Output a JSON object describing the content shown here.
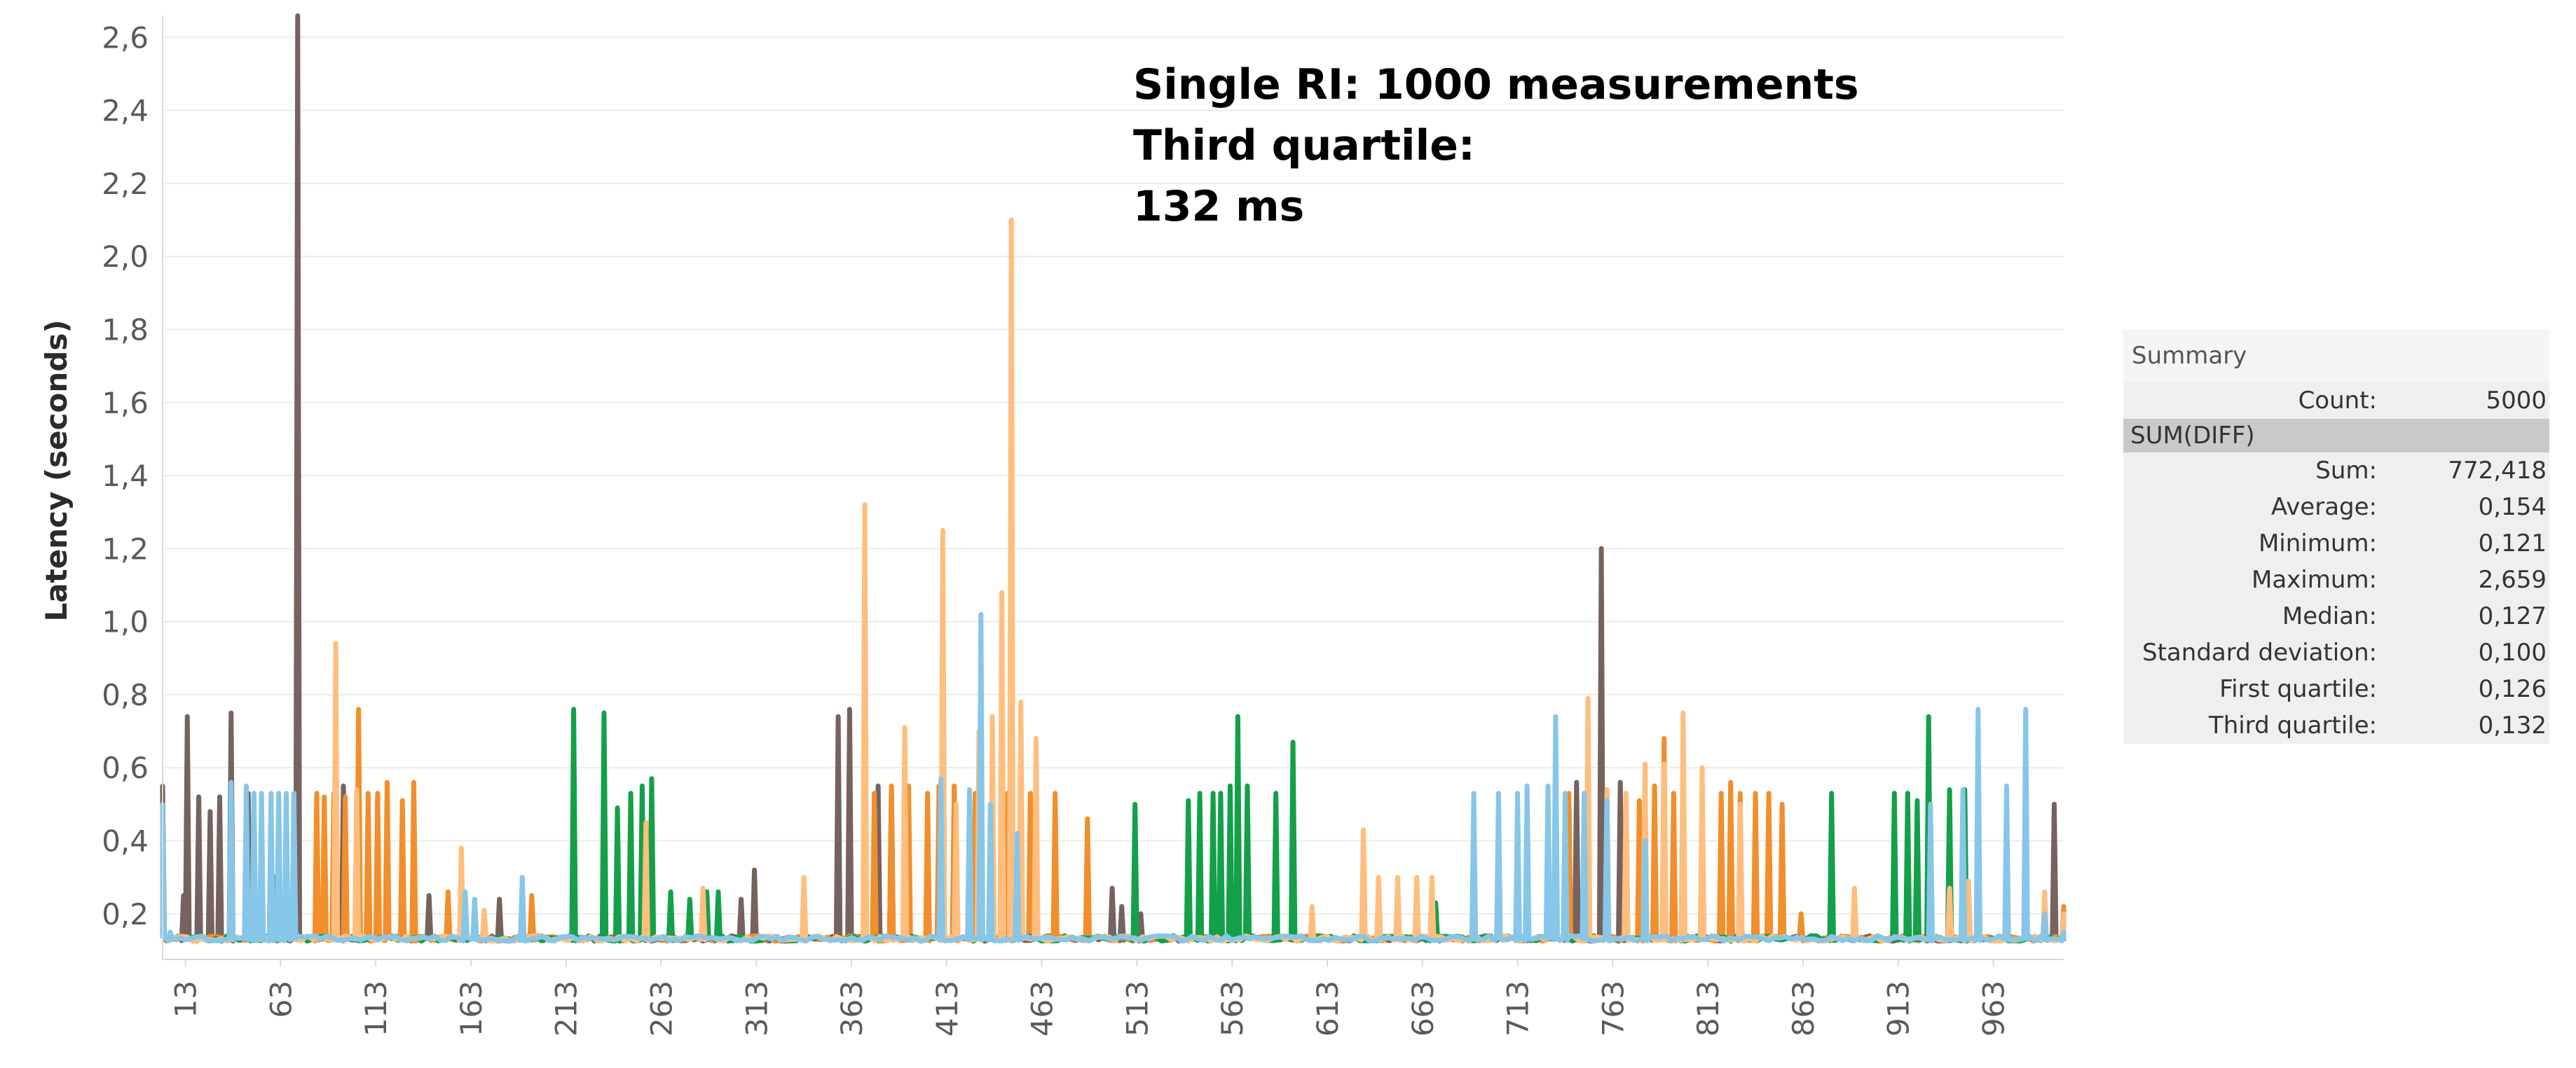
{
  "chart_data": {
    "type": "line",
    "title": "",
    "xlabel": "",
    "ylabel": "Latency (seconds)",
    "xlim": [
      1,
      1000
    ],
    "ylim": [
      0.075,
      2.66
    ],
    "yticks": [
      "0,2",
      "0,4",
      "0,6",
      "0,8",
      "1,0",
      "1,2",
      "1,4",
      "1,6",
      "1,8",
      "2,0",
      "2,2",
      "2,4",
      "2,6"
    ],
    "ytick_values": [
      0.2,
      0.4,
      0.6,
      0.8,
      1.0,
      1.2,
      1.4,
      1.6,
      1.8,
      2.0,
      2.2,
      2.4,
      2.6
    ],
    "xticks": [
      "13",
      "63",
      "113",
      "163",
      "213",
      "263",
      "313",
      "363",
      "413",
      "463",
      "513",
      "563",
      "613",
      "663",
      "713",
      "763",
      "813",
      "863",
      "913",
      "963"
    ],
    "xtick_values": [
      13,
      63,
      113,
      163,
      213,
      263,
      313,
      363,
      413,
      463,
      513,
      563,
      613,
      663,
      713,
      763,
      813,
      863,
      913,
      963
    ],
    "baseline": 0.125,
    "series": [
      {
        "name": "series-brown",
        "color": "#76625e",
        "points": [
          [
            1,
            0.55
          ],
          [
            12,
            0.25
          ],
          [
            14,
            0.74
          ],
          [
            20,
            0.52
          ],
          [
            26,
            0.48
          ],
          [
            31,
            0.52
          ],
          [
            37,
            0.75
          ],
          [
            46,
            0.53
          ],
          [
            60,
            0.3
          ],
          [
            72,
            2.659
          ],
          [
            96,
            0.55
          ],
          [
            141,
            0.25
          ],
          [
            160,
            0.25
          ],
          [
            178,
            0.24
          ],
          [
            305,
            0.24
          ],
          [
            312,
            0.32
          ],
          [
            356,
            0.74
          ],
          [
            362,
            0.76
          ],
          [
            377,
            0.55
          ],
          [
            384,
            0.55
          ],
          [
            392,
            0.53
          ],
          [
            500,
            0.27
          ],
          [
            505,
            0.22
          ],
          [
            515,
            0.2
          ],
          [
            744,
            0.56
          ],
          [
            757,
            1.2
          ],
          [
            767,
            0.56
          ],
          [
            995,
            0.5
          ],
          [
            1000,
            0.2
          ]
        ]
      },
      {
        "name": "series-orange",
        "color": "#f28e2b",
        "points": [
          [
            82,
            0.53
          ],
          [
            86,
            0.52
          ],
          [
            91,
            0.53
          ],
          [
            97,
            0.52
          ],
          [
            104,
            0.76
          ],
          [
            109,
            0.53
          ],
          [
            114,
            0.53
          ],
          [
            119,
            0.56
          ],
          [
            127,
            0.51
          ],
          [
            133,
            0.56
          ],
          [
            151,
            0.26
          ],
          [
            195,
            0.25
          ],
          [
            375,
            0.53
          ],
          [
            384,
            0.55
          ],
          [
            393,
            0.55
          ],
          [
            403,
            0.53
          ],
          [
            409,
            0.55
          ],
          [
            417,
            0.55
          ],
          [
            428,
            0.53
          ],
          [
            445,
            0.53
          ],
          [
            457,
            0.53
          ],
          [
            470,
            0.53
          ],
          [
            487,
            0.46
          ],
          [
            740,
            0.53
          ],
          [
            750,
            0.55
          ],
          [
            770,
            0.53
          ],
          [
            777,
            0.51
          ],
          [
            785,
            0.55
          ],
          [
            790,
            0.68
          ],
          [
            795,
            0.53
          ],
          [
            800,
            0.55
          ],
          [
            810,
            0.53
          ],
          [
            820,
            0.53
          ],
          [
            825,
            0.56
          ],
          [
            830,
            0.53
          ],
          [
            838,
            0.53
          ],
          [
            845,
            0.53
          ],
          [
            852,
            0.5
          ],
          [
            862,
            0.2
          ],
          [
            1000,
            0.22
          ]
        ]
      },
      {
        "name": "series-green",
        "color": "#13a049",
        "points": [
          [
            217,
            0.76
          ],
          [
            233,
            0.75
          ],
          [
            240,
            0.49
          ],
          [
            247,
            0.53
          ],
          [
            253,
            0.55
          ],
          [
            258,
            0.57
          ],
          [
            268,
            0.26
          ],
          [
            278,
            0.24
          ],
          [
            287,
            0.26
          ],
          [
            293,
            0.26
          ],
          [
            512,
            0.5
          ],
          [
            540,
            0.51
          ],
          [
            546,
            0.53
          ],
          [
            553,
            0.53
          ],
          [
            557,
            0.53
          ],
          [
            562,
            0.55
          ],
          [
            566,
            0.74
          ],
          [
            571,
            0.55
          ],
          [
            586,
            0.53
          ],
          [
            595,
            0.67
          ],
          [
            640,
            0.25
          ],
          [
            660,
            0.22
          ],
          [
            670,
            0.23
          ],
          [
            878,
            0.53
          ],
          [
            911,
            0.53
          ],
          [
            918,
            0.53
          ],
          [
            923,
            0.51
          ],
          [
            929,
            0.74
          ],
          [
            940,
            0.54
          ],
          [
            948,
            0.54
          ],
          [
            980,
            0.26
          ],
          [
            1000,
            0.2
          ]
        ]
      },
      {
        "name": "series-light-orange",
        "color": "#ffbe7d",
        "points": [
          [
            92,
            0.94
          ],
          [
            103,
            0.54
          ],
          [
            158,
            0.38
          ],
          [
            170,
            0.21
          ],
          [
            255,
            0.45
          ],
          [
            285,
            0.27
          ],
          [
            338,
            0.3
          ],
          [
            370,
            1.32
          ],
          [
            391,
            0.71
          ],
          [
            411,
            1.25
          ],
          [
            418,
            0.5
          ],
          [
            430,
            0.7
          ],
          [
            437,
            0.74
          ],
          [
            442,
            1.08
          ],
          [
            447,
            2.1
          ],
          [
            452,
            0.78
          ],
          [
            460,
            0.68
          ],
          [
            605,
            0.22
          ],
          [
            632,
            0.43
          ],
          [
            640,
            0.3
          ],
          [
            650,
            0.3
          ],
          [
            660,
            0.3
          ],
          [
            668,
            0.3
          ],
          [
            750,
            0.79
          ],
          [
            760,
            0.54
          ],
          [
            770,
            0.53
          ],
          [
            780,
            0.61
          ],
          [
            790,
            0.61
          ],
          [
            800,
            0.75
          ],
          [
            810,
            0.6
          ],
          [
            830,
            0.5
          ],
          [
            890,
            0.27
          ],
          [
            940,
            0.27
          ],
          [
            950,
            0.29
          ],
          [
            990,
            0.26
          ],
          [
            1000,
            0.2
          ]
        ]
      },
      {
        "name": "series-light-blue",
        "color": "#86c6e8",
        "points": [
          [
            1,
            0.5
          ],
          [
            5,
            0.15
          ],
          [
            37,
            0.56
          ],
          [
            45,
            0.55
          ],
          [
            49,
            0.53
          ],
          [
            53,
            0.53
          ],
          [
            58,
            0.53
          ],
          [
            62,
            0.53
          ],
          [
            66,
            0.53
          ],
          [
            70,
            0.53
          ],
          [
            160,
            0.26
          ],
          [
            165,
            0.24
          ],
          [
            190,
            0.3
          ],
          [
            410,
            0.57
          ],
          [
            425,
            0.54
          ],
          [
            431,
            1.02
          ],
          [
            436,
            0.5
          ],
          [
            450,
            0.42
          ],
          [
            690,
            0.53
          ],
          [
            703,
            0.53
          ],
          [
            713,
            0.53
          ],
          [
            718,
            0.55
          ],
          [
            729,
            0.55
          ],
          [
            733,
            0.74
          ],
          [
            738,
            0.53
          ],
          [
            748,
            0.53
          ],
          [
            760,
            0.51
          ],
          [
            780,
            0.4
          ],
          [
            930,
            0.5
          ],
          [
            947,
            0.54
          ],
          [
            955,
            0.76
          ],
          [
            970,
            0.55
          ],
          [
            980,
            0.76
          ],
          [
            990,
            0.2
          ],
          [
            1000,
            0.15
          ]
        ]
      }
    ],
    "annotations": [
      "Single RI: 1000 measurements",
      "Third quartile:",
      "132 ms"
    ]
  },
  "summary": {
    "header": "Summary",
    "count_label": "Count:",
    "count_value": "5000",
    "section": "SUM(DIFF)",
    "rows": [
      {
        "label": "Sum:",
        "value": "772,418"
      },
      {
        "label": "Average:",
        "value": "0,154"
      },
      {
        "label": "Minimum:",
        "value": "0,121"
      },
      {
        "label": "Maximum:",
        "value": "2,659"
      },
      {
        "label": "Median:",
        "value": "0,127"
      },
      {
        "label": "Standard deviation:",
        "value": "0,100"
      },
      {
        "label": "First quartile:",
        "value": "0,126"
      },
      {
        "label": "Third quartile:",
        "value": "0,132"
      }
    ]
  }
}
